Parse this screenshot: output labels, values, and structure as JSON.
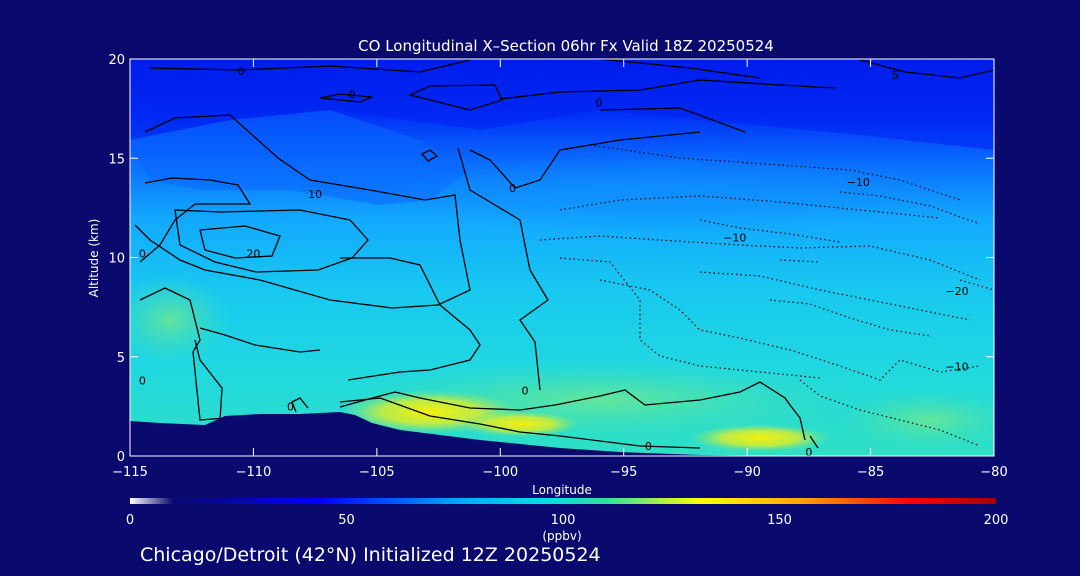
{
  "chart_data": {
    "type": "heatmap",
    "title": "CO Longitudinal X–Section 06hr  Fx Valid 18Z 20250524",
    "xlabel": "Longitude",
    "ylabel": "Altitude (km)",
    "xlim": [
      -115,
      -80
    ],
    "ylim": [
      0,
      20
    ],
    "x_ticks": [
      -115,
      -110,
      -105,
      -100,
      -95,
      -90,
      -85,
      -80
    ],
    "x_tick_labels": [
      "−115",
      "−110",
      "−105",
      "−100",
      "−95",
      "−90",
      "−85",
      "−80"
    ],
    "y_ticks": [
      0,
      5,
      10,
      15,
      20
    ],
    "y_tick_labels": [
      "0",
      "5",
      "10",
      "15",
      "20"
    ],
    "colorbar": {
      "min": 0,
      "max": 200,
      "ticks": [
        0,
        50,
        100,
        150,
        200
      ],
      "tick_labels": [
        "0",
        "50",
        "100",
        "150",
        "200"
      ],
      "unit": "(ppbv)",
      "colors": [
        "#ffffff",
        "#0a0a6e",
        "#0000ff",
        "#00aaff",
        "#00e0e0",
        "#30e0a0",
        "#ffff00",
        "#ffa000",
        "#ff0000",
        "#aa0000"
      ]
    },
    "contour_labels": [
      {
        "text": "0",
        "lon": -110.5,
        "alt": 19.4
      },
      {
        "text": "0",
        "lon": -106,
        "alt": 18.2
      },
      {
        "text": "0",
        "lon": -96,
        "alt": 17.8
      },
      {
        "text": "5",
        "lon": -84,
        "alt": 19.2
      },
      {
        "text": "10",
        "lon": -107.5,
        "alt": 13.2
      },
      {
        "text": "0",
        "lon": -99.5,
        "alt": 13.5
      },
      {
        "text": "20",
        "lon": -110,
        "alt": 10.2
      },
      {
        "text": "0",
        "lon": -114.5,
        "alt": 10.2
      },
      {
        "text": "−10",
        "lon": -85.5,
        "alt": 13.8
      },
      {
        "text": "−10",
        "lon": -90.5,
        "alt": 11
      },
      {
        "text": "−20",
        "lon": -81.5,
        "alt": 8.3
      },
      {
        "text": "−10",
        "lon": -81.5,
        "alt": 4.5
      },
      {
        "text": "0",
        "lon": -114.5,
        "alt": 3.8
      },
      {
        "text": "0",
        "lon": -108.5,
        "alt": 2.5
      },
      {
        "text": "0",
        "lon": -99,
        "alt": 3.3
      },
      {
        "text": "0",
        "lon": -94,
        "alt": 0.5
      },
      {
        "text": "0",
        "lon": -87.5,
        "alt": 0.2
      }
    ]
  },
  "footer": "Chicago/Detroit (42°N) Initialized 12Z 20250524",
  "colors": {
    "background": "#0a0a6e",
    "text": "#ffffff",
    "terrain": "#0a0a6e",
    "contour": "#000000"
  }
}
